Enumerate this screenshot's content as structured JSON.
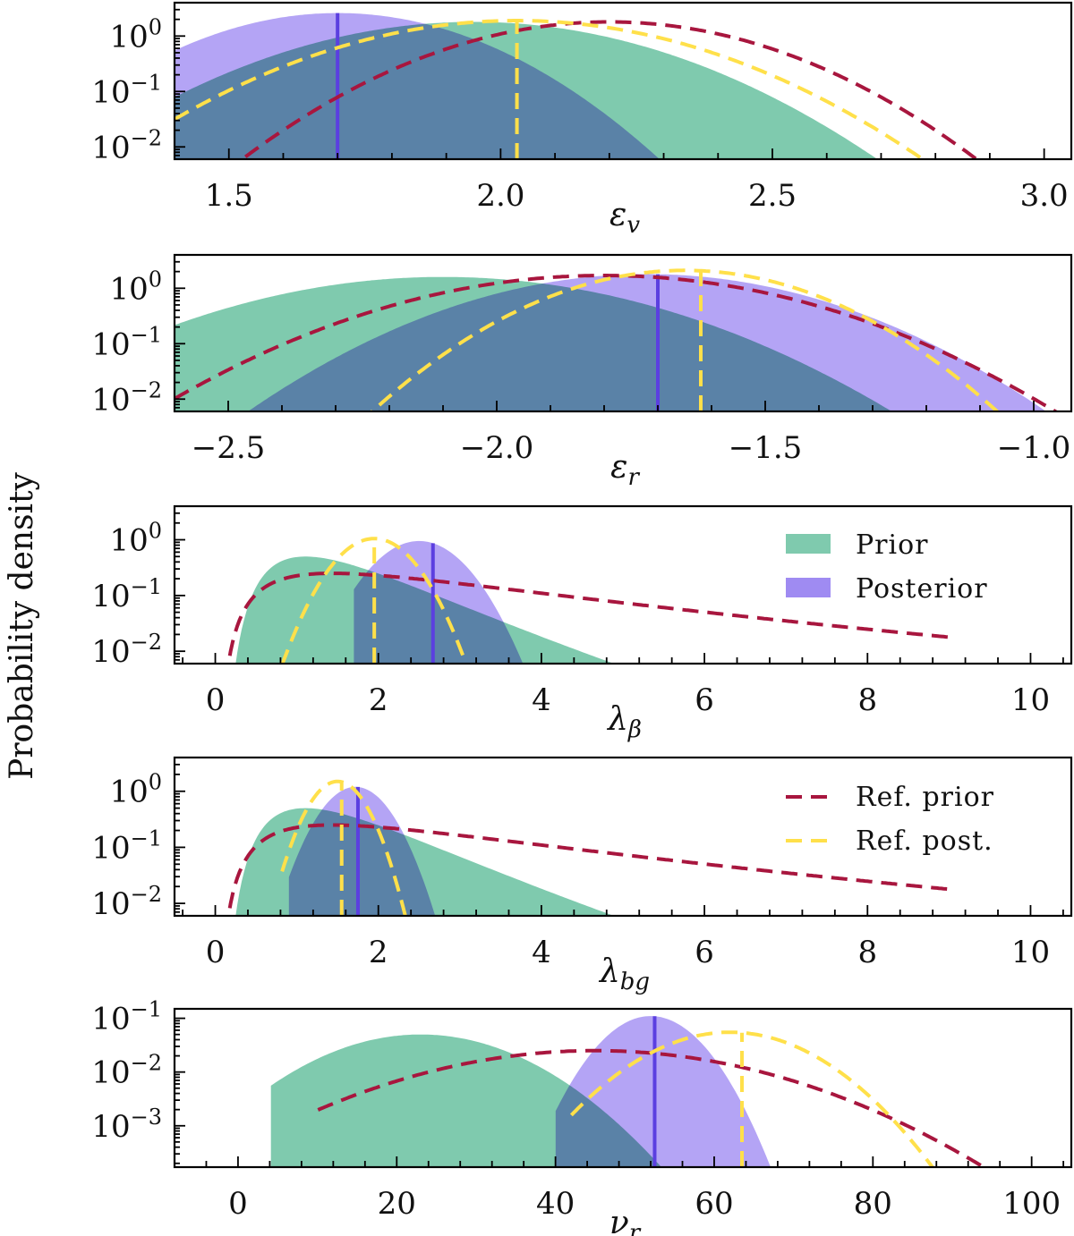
{
  "figure": {
    "ylabel": "Probability density"
  },
  "colors": {
    "prior": "#7fcaae",
    "posterior": "#9f8bf2",
    "overlap": "#7b86d6",
    "estimate": "#5b3fe0",
    "ref_prior": "#a8163e",
    "ref_post": "#ffe04a"
  },
  "legend": {
    "prior": "Prior",
    "posterior": "Posterior",
    "ref_prior": "Ref. prior",
    "ref_post": "Ref. post."
  },
  "chart_data": [
    {
      "type": "area",
      "title": "",
      "xlabel": "εv",
      "xlabel_base": "ε",
      "xlabel_sub": "v",
      "ylabel": "Probability density",
      "yscale": "log",
      "xlim": [
        1.4,
        3.05
      ],
      "ylim": [
        0.006,
        4
      ],
      "xticks": [
        1.5,
        2.0,
        2.5,
        3.0
      ],
      "xtick_labels": [
        "1.5",
        "2.0",
        "2.5",
        "3.0"
      ],
      "yticks": [
        1,
        0.1,
        0.01
      ],
      "ytick_labels": [
        {
          "base": "10",
          "exp": "0"
        },
        {
          "base": "10",
          "exp": "−1"
        },
        {
          "base": "10",
          "exp": "−2"
        }
      ],
      "series": [
        {
          "name": "Prior",
          "kind": "gaussian",
          "mu": 1.95,
          "sigma": 0.22,
          "peak": 1.8
        },
        {
          "name": "Posterior",
          "kind": "gaussian",
          "mu": 1.7,
          "sigma": 0.17,
          "peak": 2.6
        },
        {
          "name": "Ref. prior",
          "kind": "gaussian",
          "mu": 2.2,
          "sigma": 0.2,
          "peak": 1.8
        },
        {
          "name": "Ref. post.",
          "kind": "gaussian",
          "mu": 2.03,
          "sigma": 0.22,
          "peak": 1.9
        }
      ],
      "estimate_x": 1.7,
      "ref_estimate_x": 2.03
    },
    {
      "type": "area",
      "title": "",
      "xlabel": "εr",
      "xlabel_base": "ε",
      "xlabel_sub": "r",
      "yscale": "log",
      "xlim": [
        -2.6,
        -0.93
      ],
      "ylim": [
        0.006,
        4
      ],
      "xticks": [
        -2.5,
        -2.0,
        -1.5,
        -1.0
      ],
      "xtick_labels": [
        "−2.5",
        "−2.0",
        "−1.5",
        "−1.0"
      ],
      "yticks": [
        1,
        0.1,
        0.01
      ],
      "ytick_labels": [
        {
          "base": "10",
          "exp": "0"
        },
        {
          "base": "10",
          "exp": "−1"
        },
        {
          "base": "10",
          "exp": "−2"
        }
      ],
      "series": [
        {
          "name": "Prior",
          "kind": "gaussian",
          "mu": -2.1,
          "sigma": 0.25,
          "peak": 1.6
        },
        {
          "name": "Posterior",
          "kind": "gaussian",
          "mu": -1.72,
          "sigma": 0.22,
          "peak": 1.8
        },
        {
          "name": "Ref. prior",
          "kind": "gaussian",
          "mu": -1.8,
          "sigma": 0.25,
          "peak": 1.7
        },
        {
          "name": "Ref. post.",
          "kind": "gaussian",
          "mu": -1.65,
          "sigma": 0.17,
          "peak": 2.1
        }
      ],
      "estimate_x": -1.7,
      "ref_estimate_x": -1.62
    },
    {
      "type": "area",
      "title": "",
      "xlabel": "λβ",
      "xlabel_base": "λ",
      "xlabel_sub": "β",
      "yscale": "log",
      "xlim": [
        -0.5,
        10.5
      ],
      "ylim": [
        0.006,
        4
      ],
      "xticks": [
        0,
        2,
        4,
        6,
        8,
        10
      ],
      "xtick_labels": [
        "0",
        "2",
        "4",
        "6",
        "8",
        "10"
      ],
      "yticks": [
        1,
        0.1,
        0.01
      ],
      "ytick_labels": [
        {
          "base": "10",
          "exp": "0"
        },
        {
          "base": "10",
          "exp": "−1"
        },
        {
          "base": "10",
          "exp": "−2"
        }
      ],
      "series": [
        {
          "name": "Prior",
          "kind": "lognormal",
          "mu": 0.35,
          "sigma": 0.5,
          "peak": 0.5,
          "xmin": 0.1,
          "xmax": 4.9
        },
        {
          "name": "Posterior",
          "kind": "gaussian",
          "mu": 2.5,
          "sigma": 0.4,
          "peak": 0.95,
          "xmin": 1.7,
          "xmax": 4.6
        },
        {
          "name": "Ref. prior",
          "kind": "lognormal",
          "mu": 1.0,
          "sigma": 0.8,
          "peak": 0.25,
          "xmin": 0.1,
          "xmax": 9.0
        },
        {
          "name": "Ref. post.",
          "kind": "gaussian",
          "mu": 1.95,
          "sigma": 0.35,
          "peak": 1.05,
          "xmin": 0.8,
          "xmax": 3.5
        }
      ],
      "estimate_x": 2.67,
      "ref_estimate_x": 1.95
    },
    {
      "type": "area",
      "title": "",
      "xlabel": "λbg",
      "xlabel_base": "λ",
      "xlabel_sub": "bg",
      "yscale": "log",
      "xlim": [
        -0.5,
        10.5
      ],
      "ylim": [
        0.006,
        4
      ],
      "xticks": [
        0,
        2,
        4,
        6,
        8,
        10
      ],
      "xtick_labels": [
        "0",
        "2",
        "4",
        "6",
        "8",
        "10"
      ],
      "yticks": [
        1,
        0.1,
        0.01
      ],
      "ytick_labels": [
        {
          "base": "10",
          "exp": "0"
        },
        {
          "base": "10",
          "exp": "−1"
        },
        {
          "base": "10",
          "exp": "−2"
        }
      ],
      "series": [
        {
          "name": "Prior",
          "kind": "lognormal",
          "mu": 0.35,
          "sigma": 0.5,
          "peak": 0.5,
          "xmin": 0.1,
          "xmax": 4.9
        },
        {
          "name": "Posterior",
          "kind": "gaussian",
          "mu": 1.72,
          "sigma": 0.3,
          "peak": 1.2,
          "xmin": 0.9,
          "xmax": 2.8
        },
        {
          "name": "Ref. prior",
          "kind": "lognormal",
          "mu": 1.0,
          "sigma": 0.8,
          "peak": 0.25,
          "xmin": 0.1,
          "xmax": 9.0
        },
        {
          "name": "Ref. post.",
          "kind": "gaussian",
          "mu": 1.5,
          "sigma": 0.25,
          "peak": 1.5,
          "xmin": 0.8,
          "xmax": 2.5
        }
      ],
      "estimate_x": 1.75,
      "ref_estimate_x": 1.55
    },
    {
      "type": "area",
      "title": "",
      "xlabel": "νr",
      "xlabel_base": "ν",
      "xlabel_sub": "r",
      "yscale": "log",
      "xlim": [
        -8,
        105
      ],
      "ylim": [
        0.00017,
        0.15
      ],
      "xticks": [
        0,
        20,
        40,
        60,
        80,
        100
      ],
      "xtick_labels": [
        "0",
        "20",
        "40",
        "60",
        "80",
        "100"
      ],
      "yticks": [
        0.1,
        0.01,
        0.001
      ],
      "ytick_labels": [
        {
          "base": "10",
          "exp": "−1"
        },
        {
          "base": "10",
          "exp": "−2"
        },
        {
          "base": "10",
          "exp": "−3"
        }
      ],
      "series": [
        {
          "name": "Prior",
          "kind": "gaussian",
          "mu": 23,
          "sigma": 9.0,
          "peak": 0.05,
          "xmin": 4,
          "xmax": 62
        },
        {
          "name": "Posterior",
          "kind": "gaussian",
          "mu": 52,
          "sigma": 4.2,
          "peak": 0.11,
          "xmin": 40,
          "xmax": 68
        },
        {
          "name": "Ref. prior",
          "kind": "gaussian",
          "mu": 45,
          "sigma": 15.5,
          "peak": 0.025,
          "xmin": 10,
          "xmax": 105
        },
        {
          "name": "Ref. post.",
          "kind": "gaussian",
          "mu": 62,
          "sigma": 7.5,
          "peak": 0.055,
          "xmin": 42,
          "xmax": 95
        }
      ],
      "estimate_x": 52.5,
      "ref_estimate_x": 63.5
    }
  ]
}
